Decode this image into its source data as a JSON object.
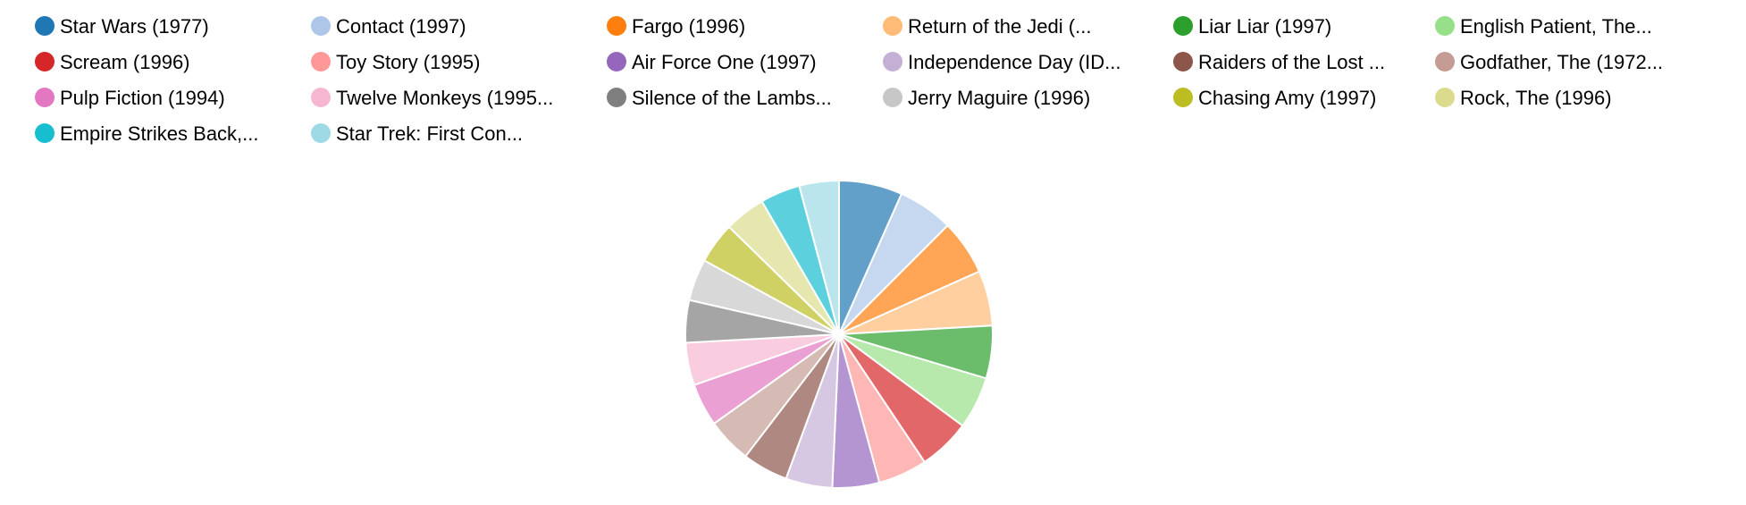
{
  "chart_data": {
    "type": "pie",
    "legend_position": "top",
    "slices": [
      {
        "label": "Star Wars (1977)",
        "value": 583,
        "color": "#1f77b4"
      },
      {
        "label": "Contact (1997)",
        "value": 509,
        "color": "#aec7e8"
      },
      {
        "label": "Fargo (1996)",
        "value": 508,
        "color": "#ff7f0e"
      },
      {
        "label": "Return of the Jedi (...",
        "value": 507,
        "color": "#ffbb78"
      },
      {
        "label": "Liar Liar (1997)",
        "value": 485,
        "color": "#2ca02c"
      },
      {
        "label": "English Patient, The...",
        "value": 481,
        "color": "#98df8a"
      },
      {
        "label": "Scream (1996)",
        "value": 478,
        "color": "#d62728"
      },
      {
        "label": "Toy Story (1995)",
        "value": 452,
        "color": "#ff9896"
      },
      {
        "label": "Air Force One (1997)",
        "value": 431,
        "color": "#9467bd"
      },
      {
        "label": "Independence Day (ID...",
        "value": 429,
        "color": "#c5b0d5"
      },
      {
        "label": "Raiders of the Lost ...",
        "value": 420,
        "color": "#8c564b"
      },
      {
        "label": "Godfather, The (1972...",
        "value": 413,
        "color": "#c49c94"
      },
      {
        "label": "Pulp Fiction (1994)",
        "value": 394,
        "color": "#e377c2"
      },
      {
        "label": "Twelve Monkeys (1995...",
        "value": 392,
        "color": "#f7b6d2"
      },
      {
        "label": "Silence of the Lambs...",
        "value": 390,
        "color": "#7f7f7f"
      },
      {
        "label": "Jerry Maguire (1996)",
        "value": 384,
        "color": "#c7c7c7"
      },
      {
        "label": "Chasing Amy (1997)",
        "value": 379,
        "color": "#bcbd22"
      },
      {
        "label": "Rock, The (1996)",
        "value": 378,
        "color": "#dbdb8d"
      },
      {
        "label": "Empire Strikes Back,...",
        "value": 367,
        "color": "#17becf"
      },
      {
        "label": "Star Trek: First Con...",
        "value": 365,
        "color": "#9edae5"
      }
    ]
  }
}
